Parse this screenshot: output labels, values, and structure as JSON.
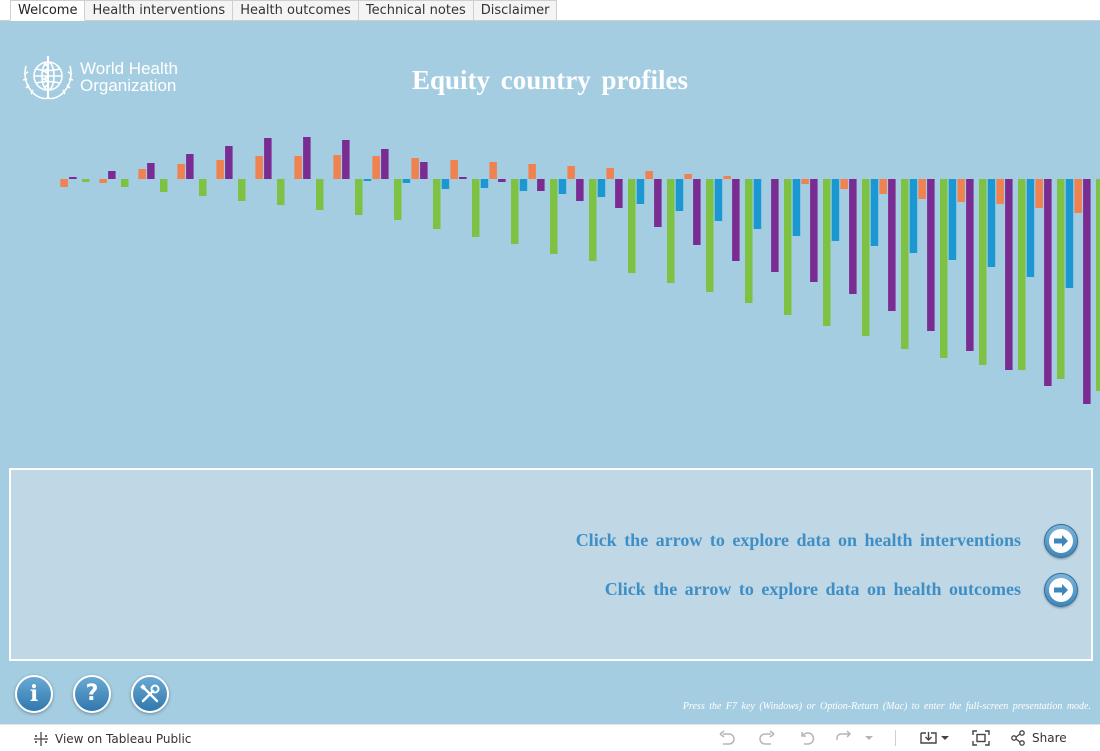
{
  "tabs": [
    {
      "label": "Welcome",
      "active": true
    },
    {
      "label": "Health interventions",
      "active": false
    },
    {
      "label": "Health outcomes",
      "active": false
    },
    {
      "label": "Technical notes",
      "active": false
    },
    {
      "label": "Disclaimer",
      "active": false
    }
  ],
  "logo": {
    "line1": "World Health",
    "line2": "Organization"
  },
  "title": "Equity country profiles",
  "panel": {
    "cta_interventions": "Click the arrow to explore data on health interventions",
    "cta_outcomes": "Click the arrow to explore data on health outcomes"
  },
  "buttons": {
    "info": "i",
    "help": "?"
  },
  "footnote": "Press the F7 key (Windows) or Option-Return (Mac) to enter the full-screen presentation mode.",
  "toolbar": {
    "view_label": "View on Tableau Public",
    "share_label": "Share"
  },
  "colors": {
    "background": "#a4cde1",
    "panel": "#c0d7e5",
    "green": "#7dc242",
    "blue": "#1b97d1",
    "orange": "#f0824f",
    "purple": "#7b2c93",
    "cta_text": "#3e8fc5"
  },
  "chart_data": {
    "type": "bar",
    "series": [
      {
        "color": "#7dc242",
        "values": [
          0,
          -3,
          -8,
          -13,
          -17,
          -22,
          -26,
          -31,
          -36,
          -41,
          -50,
          -58,
          -65,
          -75,
          -82,
          -94,
          -104,
          -113,
          -124,
          -136,
          -147,
          -157,
          -170,
          -179,
          -186,
          -191,
          -200,
          -212
        ]
      },
      {
        "color": "#1b97d1",
        "values": [
          0,
          0,
          0,
          0,
          0,
          0,
          0,
          0,
          -2,
          -4,
          -10,
          -9,
          -12,
          -15,
          -18,
          -25,
          -32,
          -42,
          -50,
          -57,
          -62,
          -67,
          -74,
          -81,
          -88,
          -98,
          -109,
          -124
        ]
      },
      {
        "color": "#f0824f",
        "values": [
          -8,
          -4,
          10,
          15,
          19,
          23,
          23,
          24,
          23,
          21,
          19,
          17,
          15,
          13,
          11,
          8,
          5,
          3,
          0,
          -5,
          -10,
          -15,
          -20,
          -23,
          -25,
          -29,
          -34,
          -40
        ]
      },
      {
        "color": "#7b2c93",
        "values": [
          2,
          8,
          16,
          25,
          33,
          41,
          42,
          39,
          30,
          17,
          2,
          -3,
          -12,
          -22,
          -29,
          -48,
          -66,
          -82,
          -93,
          -103,
          -115,
          -132,
          -152,
          -172,
          -191,
          -207,
          -225,
          -246
        ]
      }
    ]
  }
}
